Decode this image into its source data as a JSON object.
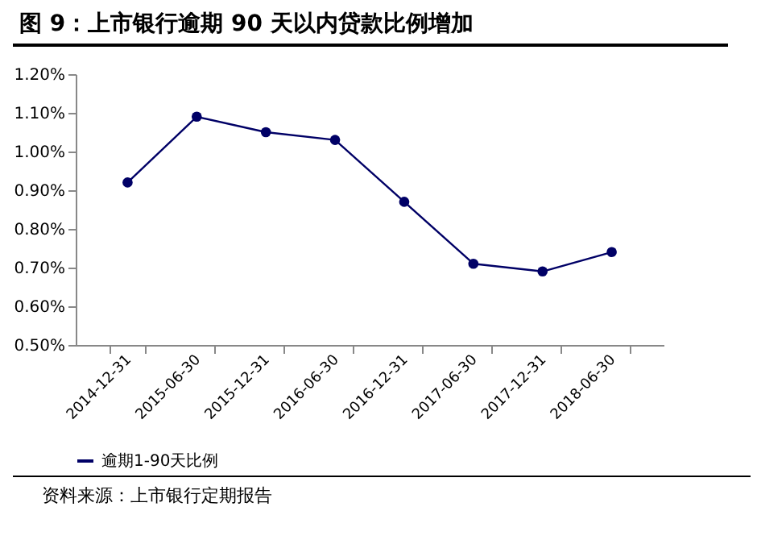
{
  "chart_data": {
    "type": "line",
    "title": "图 9：上市银行逾期 90 天以内贷款比例增加",
    "categories": [
      "2014-12-31",
      "2015-06-30",
      "2015-12-31",
      "2016-06-30",
      "2016-12-31",
      "2017-06-30",
      "2017-12-31",
      "2018-06-30"
    ],
    "series": [
      {
        "name": "逾期1-90天比例",
        "color": "#000066",
        "values": [
          0.92,
          1.09,
          1.05,
          1.03,
          0.87,
          0.71,
          0.69,
          0.74
        ]
      }
    ],
    "ylim": [
      0.5,
      1.2
    ],
    "yticks": [
      {
        "value": 0.5,
        "label": "0.50%"
      },
      {
        "value": 0.6,
        "label": "0.60%"
      },
      {
        "value": 0.7,
        "label": "0.70%"
      },
      {
        "value": 0.8,
        "label": "0.80%"
      },
      {
        "value": 0.9,
        "label": "0.90%"
      },
      {
        "value": 1.0,
        "label": "1.00%"
      },
      {
        "value": 1.1,
        "label": "1.10%"
      },
      {
        "value": 1.2,
        "label": "1.20%"
      }
    ],
    "grid": false,
    "legend": "bottom",
    "marker": "circle",
    "line_style": "solid",
    "annotations": [
      "资料来源：上市银行定期报告"
    ]
  }
}
